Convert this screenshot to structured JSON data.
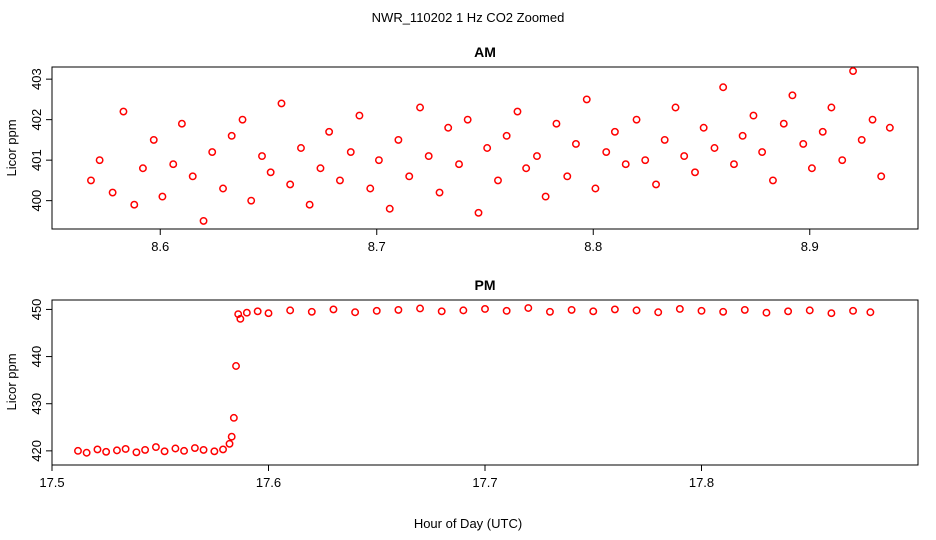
{
  "figure": {
    "title": "NWR_110202  1 Hz CO2 Zoomed",
    "xlabel": "Hour of Day (UTC)",
    "point_color": "#ff0000"
  },
  "chart_data": [
    {
      "type": "scatter",
      "title": "AM",
      "xlabel": "",
      "ylabel": "Licor ppm",
      "xlim": [
        8.55,
        8.95
      ],
      "ylim": [
        399.3,
        403.3
      ],
      "xticks": [
        8.6,
        8.7,
        8.8,
        8.9
      ],
      "xtick_labels": [
        "8.6",
        "8.7",
        "8.8",
        "8.9"
      ],
      "yticks": [
        400,
        401,
        402,
        403
      ],
      "ytick_labels": [
        "400",
        "401",
        "402",
        "403"
      ],
      "grid": false,
      "legend": "none",
      "series": [
        {
          "x": [
            8.568,
            8.572,
            8.578,
            8.583,
            8.588,
            8.592,
            8.597,
            8.601,
            8.606,
            8.61,
            8.615,
            8.62,
            8.624,
            8.629,
            8.633,
            8.638,
            8.642,
            8.647,
            8.651,
            8.656,
            8.66,
            8.665,
            8.669,
            8.674,
            8.678,
            8.683,
            8.688,
            8.692,
            8.697,
            8.701,
            8.706,
            8.71,
            8.715,
            8.72,
            8.724,
            8.729,
            8.733,
            8.738,
            8.742,
            8.747,
            8.751,
            8.756,
            8.76,
            8.765,
            8.769,
            8.774,
            8.778,
            8.783,
            8.788,
            8.792,
            8.797,
            8.801,
            8.806,
            8.81,
            8.815,
            8.82,
            8.824,
            8.829,
            8.833,
            8.838,
            8.842,
            8.847,
            8.851,
            8.856,
            8.86,
            8.865,
            8.869,
            8.874,
            8.878,
            8.883,
            8.888,
            8.892,
            8.897,
            8.901,
            8.906,
            8.91,
            8.915,
            8.92,
            8.924,
            8.929,
            8.933,
            8.937
          ],
          "y": [
            400.5,
            401.0,
            400.2,
            402.2,
            399.9,
            400.8,
            401.5,
            400.1,
            400.9,
            401.9,
            400.6,
            399.5,
            401.2,
            400.3,
            401.6,
            402.0,
            400.0,
            401.1,
            400.7,
            402.4,
            400.4,
            401.3,
            399.9,
            400.8,
            401.7,
            400.5,
            401.2,
            402.1,
            400.3,
            401.0,
            399.8,
            401.5,
            400.6,
            402.3,
            401.1,
            400.2,
            401.8,
            400.9,
            402.0,
            399.7,
            401.3,
            400.5,
            401.6,
            402.2,
            400.8,
            401.1,
            400.1,
            401.9,
            400.6,
            401.4,
            402.5,
            400.3,
            401.2,
            401.7,
            400.9,
            402.0,
            401.0,
            400.4,
            401.5,
            402.3,
            401.1,
            400.7,
            401.8,
            401.3,
            402.8,
            400.9,
            401.6,
            402.1,
            401.2,
            400.5,
            401.9,
            402.6,
            401.4,
            400.8,
            401.7,
            402.3,
            401.0,
            403.2,
            401.5,
            402.0,
            400.6,
            401.8
          ]
        }
      ]
    },
    {
      "type": "scatter",
      "title": "PM",
      "xlabel": "Hour of Day (UTC)",
      "ylabel": "Licor ppm",
      "xlim": [
        17.5,
        17.9
      ],
      "ylim": [
        417,
        452
      ],
      "xticks": [
        17.5,
        17.6,
        17.7,
        17.8
      ],
      "xtick_labels": [
        "17.5",
        "17.6",
        "17.7",
        "17.8"
      ],
      "yticks": [
        420,
        430,
        440,
        450
      ],
      "ytick_labels": [
        "420",
        "430",
        "440",
        "450"
      ],
      "grid": false,
      "legend": "none",
      "series": [
        {
          "x": [
            17.512,
            17.516,
            17.521,
            17.525,
            17.53,
            17.534,
            17.539,
            17.543,
            17.548,
            17.552,
            17.557,
            17.561,
            17.566,
            17.57,
            17.575,
            17.579,
            17.582,
            17.583,
            17.584,
            17.585,
            17.586,
            17.587,
            17.59,
            17.595,
            17.6,
            17.61,
            17.62,
            17.63,
            17.64,
            17.65,
            17.66,
            17.67,
            17.68,
            17.69,
            17.7,
            17.71,
            17.72,
            17.73,
            17.74,
            17.75,
            17.76,
            17.77,
            17.78,
            17.79,
            17.8,
            17.81,
            17.82,
            17.83,
            17.84,
            17.85,
            17.86,
            17.87,
            17.878
          ],
          "y": [
            420.0,
            419.6,
            420.3,
            419.8,
            420.1,
            420.4,
            419.7,
            420.2,
            420.8,
            419.9,
            420.5,
            420.0,
            420.6,
            420.2,
            419.9,
            420.3,
            421.5,
            423.0,
            427.0,
            438.0,
            449.0,
            448.0,
            449.3,
            449.6,
            449.2,
            449.8,
            449.5,
            450.0,
            449.4,
            449.7,
            449.9,
            450.2,
            449.6,
            449.8,
            450.1,
            449.7,
            450.3,
            449.5,
            449.9,
            449.6,
            450.0,
            449.8,
            449.4,
            450.1,
            449.7,
            449.5,
            449.9,
            449.3,
            449.6,
            449.8,
            449.2,
            449.7,
            449.4
          ]
        }
      ]
    }
  ]
}
